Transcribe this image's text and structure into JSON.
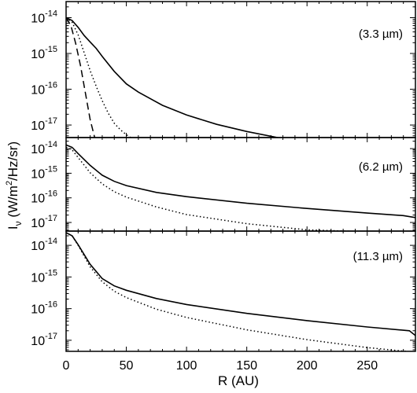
{
  "chart_data": [
    {
      "type": "line",
      "annotation": "(3.3 µm)",
      "xlim": [
        0,
        290
      ],
      "ylim_log10": [
        -17.35,
        -13.55
      ],
      "yticks": [
        {
          "exp": "-14"
        },
        {
          "exp": "-15"
        },
        {
          "exp": "-16"
        },
        {
          "exp": "-17"
        }
      ],
      "series": [
        {
          "style": "solid",
          "x": [
            0,
            5,
            10,
            15,
            20,
            25,
            30,
            40,
            50,
            60,
            80,
            100,
            125,
            150,
            180
          ],
          "log10_y": [
            -14.0,
            -14.08,
            -14.27,
            -14.5,
            -14.68,
            -14.86,
            -15.08,
            -15.5,
            -15.85,
            -16.08,
            -16.45,
            -16.72,
            -16.98,
            -17.18,
            -17.38
          ]
        },
        {
          "style": "dotted",
          "x": [
            0,
            5,
            10,
            15,
            20,
            25,
            30,
            35,
            40,
            45,
            50,
            55
          ],
          "log10_y": [
            -14.0,
            -14.13,
            -14.48,
            -14.98,
            -15.48,
            -15.92,
            -16.32,
            -16.67,
            -16.95,
            -17.13,
            -17.27,
            -17.38
          ]
        },
        {
          "style": "dashed",
          "x": [
            0,
            4,
            8,
            12,
            16,
            20,
            24
          ],
          "log10_y": [
            -14.0,
            -14.22,
            -14.72,
            -15.35,
            -16.1,
            -16.85,
            -17.38
          ]
        }
      ]
    },
    {
      "type": "line",
      "annotation": "(6.2 µm)",
      "xlim": [
        0,
        290
      ],
      "ylim_log10": [
        -17.35,
        -13.55
      ],
      "yticks": [
        {
          "exp": "-14"
        },
        {
          "exp": "-15"
        },
        {
          "exp": "-16"
        },
        {
          "exp": "-17"
        }
      ],
      "series": [
        {
          "style": "solid",
          "x": [
            0,
            5,
            10,
            20,
            30,
            40,
            50,
            75,
            100,
            150,
            200,
            250,
            280,
            290
          ],
          "log10_y": [
            -13.85,
            -13.95,
            -14.2,
            -14.68,
            -15.08,
            -15.33,
            -15.5,
            -15.78,
            -15.95,
            -16.22,
            -16.43,
            -16.62,
            -16.72,
            -16.8
          ]
        },
        {
          "style": "dotted",
          "x": [
            0,
            5,
            10,
            20,
            30,
            40,
            50,
            75,
            100,
            150,
            200,
            250
          ],
          "log10_y": [
            -13.95,
            -14.05,
            -14.36,
            -14.98,
            -15.43,
            -15.75,
            -15.97,
            -16.37,
            -16.68,
            -17.05,
            -17.3,
            -17.38
          ]
        }
      ]
    },
    {
      "type": "line",
      "annotation": "(11.3 µm)",
      "xlim": [
        0,
        290
      ],
      "ylim_log10": [
        -17.35,
        -13.55
      ],
      "yticks": [
        {
          "exp": "-14"
        },
        {
          "exp": "-15"
        },
        {
          "exp": "-16"
        },
        {
          "exp": "-17"
        }
      ],
      "series": [
        {
          "style": "solid",
          "x": [
            0,
            5,
            10,
            20,
            30,
            40,
            50,
            75,
            100,
            150,
            200,
            250,
            285,
            290
          ],
          "log10_y": [
            -13.6,
            -13.7,
            -13.98,
            -14.6,
            -15.05,
            -15.28,
            -15.42,
            -15.68,
            -15.87,
            -16.15,
            -16.38,
            -16.58,
            -16.7,
            -16.85
          ]
        },
        {
          "style": "dotted",
          "x": [
            0,
            5,
            10,
            20,
            30,
            40,
            50,
            75,
            100,
            150,
            200,
            250,
            290
          ],
          "log10_y": [
            -13.6,
            -13.7,
            -14.0,
            -14.68,
            -15.15,
            -15.45,
            -15.65,
            -16.02,
            -16.28,
            -16.67,
            -16.98,
            -17.23,
            -17.38
          ]
        }
      ]
    }
  ],
  "xaxis": {
    "label": "R (AU)",
    "ticks": [
      "0",
      "50",
      "100",
      "150",
      "200",
      "250"
    ],
    "tick_values": [
      0,
      50,
      100,
      150,
      200,
      250
    ]
  },
  "yaxis": {
    "label_main": "I",
    "label_sub": "ν",
    "label_units_pre": " (W/m",
    "label_units_sup": "2",
    "label_units_post": "/Hz/sr)",
    "tick_base": "10"
  }
}
